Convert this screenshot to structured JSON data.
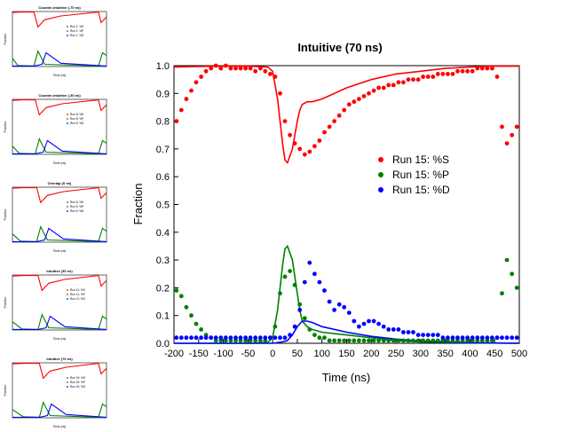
{
  "chart_data": [
    {
      "type": "scatter",
      "title": "Intuitive (70 ns)",
      "xlabel": "Time (ns)",
      "ylabel": "Fraction",
      "xlim": [
        -200,
        500
      ],
      "ylim": [
        0,
        1.0
      ],
      "xticks": [
        "-200",
        "-150",
        "-100",
        "-50",
        "0",
        "50",
        "100",
        "150",
        "200",
        "250",
        "300",
        "350",
        "400",
        "450",
        "500"
      ],
      "yticks": [
        "0.0",
        "0.1",
        "0.2",
        "0.3",
        "0.4",
        "0.5",
        "0.6",
        "0.7",
        "0.8",
        "0.9",
        "1.0"
      ],
      "legend_position": "right-middle",
      "grid": false,
      "series": [
        {
          "name": "Run 15: %S",
          "color": "#ff0000",
          "x": [
            -195,
            -185,
            -175,
            -165,
            -155,
            -145,
            -135,
            -125,
            -115,
            -105,
            -95,
            -85,
            -75,
            -65,
            -55,
            -45,
            -35,
            -25,
            -15,
            -5,
            5,
            15,
            25,
            35,
            45,
            55,
            65,
            75,
            85,
            95,
            105,
            115,
            125,
            135,
            145,
            155,
            165,
            175,
            185,
            195,
            205,
            215,
            225,
            235,
            245,
            255,
            265,
            275,
            285,
            295,
            305,
            315,
            325,
            335,
            345,
            355,
            365,
            375,
            385,
            395,
            405,
            415,
            425,
            435,
            445,
            455,
            465,
            475,
            485,
            495
          ],
          "y": [
            0.8,
            0.84,
            0.88,
            0.91,
            0.94,
            0.96,
            0.98,
            0.99,
            1.0,
            0.99,
            1.0,
            0.99,
            0.99,
            0.99,
            0.99,
            0.99,
            0.98,
            0.99,
            0.98,
            0.97,
            0.96,
            0.9,
            0.8,
            0.75,
            0.72,
            0.7,
            0.68,
            0.69,
            0.71,
            0.73,
            0.76,
            0.78,
            0.8,
            0.82,
            0.84,
            0.86,
            0.87,
            0.88,
            0.89,
            0.9,
            0.91,
            0.92,
            0.92,
            0.93,
            0.93,
            0.94,
            0.94,
            0.95,
            0.95,
            0.95,
            0.96,
            0.96,
            0.96,
            0.97,
            0.97,
            0.97,
            0.97,
            0.98,
            0.98,
            0.98,
            0.98,
            0.99,
            0.99,
            0.99,
            0.99,
            0.96,
            0.78,
            0.72,
            0.75,
            0.78
          ]
        },
        {
          "name": "Run 15: %P",
          "color": "#008000",
          "x": [
            -195,
            -185,
            -175,
            -165,
            -155,
            -145,
            -135,
            -125,
            -115,
            -105,
            -95,
            -85,
            -75,
            -65,
            -55,
            -45,
            -35,
            -25,
            -15,
            -5,
            5,
            15,
            25,
            35,
            45,
            55,
            65,
            75,
            85,
            95,
            105,
            115,
            125,
            135,
            145,
            155,
            165,
            175,
            185,
            195,
            205,
            215,
            225,
            235,
            245,
            255,
            265,
            275,
            285,
            295,
            305,
            315,
            325,
            335,
            345,
            355,
            365,
            375,
            385,
            395,
            405,
            415,
            425,
            435,
            445,
            455,
            465,
            475,
            485,
            495
          ],
          "y": [
            0.19,
            0.17,
            0.13,
            0.1,
            0.07,
            0.05,
            0.03,
            0.02,
            0.01,
            0.01,
            0.01,
            0.01,
            0.01,
            0.01,
            0.01,
            0.01,
            0.01,
            0.01,
            0.01,
            0.02,
            0.06,
            0.18,
            0.24,
            0.26,
            0.21,
            0.14,
            0.09,
            0.05,
            0.03,
            0.02,
            0.02,
            0.01,
            0.01,
            0.01,
            0.01,
            0.01,
            0.01,
            0.01,
            0.01,
            0.01,
            0.01,
            0.01,
            0.01,
            0.01,
            0.01,
            0.01,
            0.01,
            0.01,
            0.01,
            0.01,
            0.01,
            0.01,
            0.01,
            0.01,
            0.01,
            0.01,
            0.01,
            0.01,
            0.01,
            0.01,
            0.01,
            0.01,
            0.01,
            0.01,
            0.01,
            0.02,
            0.18,
            0.3,
            0.25,
            0.2
          ]
        },
        {
          "name": "Run 15: %D",
          "color": "#0000ff",
          "x": [
            -195,
            -185,
            -175,
            -165,
            -155,
            -145,
            -135,
            -125,
            -115,
            -105,
            -95,
            -85,
            -75,
            -65,
            -55,
            -45,
            -35,
            -25,
            -15,
            -5,
            5,
            15,
            25,
            35,
            45,
            55,
            65,
            75,
            85,
            95,
            105,
            115,
            125,
            135,
            145,
            155,
            165,
            175,
            185,
            195,
            205,
            215,
            225,
            235,
            245,
            255,
            265,
            275,
            285,
            295,
            305,
            315,
            325,
            335,
            345,
            355,
            365,
            375,
            385,
            395,
            405,
            415,
            425,
            435,
            445,
            455,
            465,
            475,
            485,
            495
          ],
          "y": [
            0.02,
            0.02,
            0.02,
            0.02,
            0.02,
            0.02,
            0.02,
            0.02,
            0.02,
            0.02,
            0.02,
            0.02,
            0.02,
            0.02,
            0.02,
            0.02,
            0.02,
            0.02,
            0.02,
            0.02,
            0.02,
            0.02,
            0.02,
            0.03,
            0.06,
            0.12,
            0.22,
            0.29,
            0.25,
            0.22,
            0.19,
            0.15,
            0.12,
            0.14,
            0.13,
            0.11,
            0.08,
            0.06,
            0.07,
            0.08,
            0.08,
            0.07,
            0.06,
            0.05,
            0.05,
            0.05,
            0.04,
            0.04,
            0.04,
            0.03,
            0.03,
            0.03,
            0.03,
            0.03,
            0.02,
            0.02,
            0.02,
            0.02,
            0.02,
            0.02,
            0.02,
            0.02,
            0.02,
            0.02,
            0.02,
            0.02,
            0.02,
            0.02,
            0.02,
            0.02
          ]
        }
      ],
      "fit_curves": [
        {
          "color": "#ff0000",
          "x": [
            -200,
            -150,
            -100,
            -50,
            -10,
            0,
            10,
            20,
            25,
            30,
            40,
            50,
            55,
            60,
            70,
            80,
            100,
            150,
            200,
            250,
            300,
            350,
            400,
            440,
            450,
            460,
            500
          ],
          "y": [
            0.995,
            0.997,
            0.998,
            0.998,
            0.995,
            0.98,
            0.88,
            0.72,
            0.66,
            0.65,
            0.7,
            0.8,
            0.84,
            0.86,
            0.87,
            0.87,
            0.88,
            0.92,
            0.95,
            0.97,
            0.98,
            0.99,
            0.995,
            0.998,
            0.998,
            0.998,
            0.998
          ]
        },
        {
          "color": "#008000",
          "x": [
            -200,
            -50,
            -10,
            0,
            10,
            20,
            25,
            30,
            40,
            50,
            55,
            60,
            70,
            80,
            100,
            150,
            200,
            250,
            300,
            350,
            400,
            450,
            500
          ],
          "y": [
            0.0,
            0.0,
            0.003,
            0.02,
            0.12,
            0.28,
            0.34,
            0.35,
            0.3,
            0.18,
            0.12,
            0.08,
            0.06,
            0.05,
            0.04,
            0.03,
            0.02,
            0.01,
            0.005,
            0.003,
            0.002,
            0.001,
            0.0
          ]
        },
        {
          "color": "#0000ff",
          "x": [
            -200,
            0,
            20,
            30,
            40,
            50,
            60,
            70,
            80,
            100,
            150,
            200,
            250,
            300,
            350,
            400,
            450,
            500
          ],
          "y": [
            0.0,
            0.0,
            0.005,
            0.01,
            0.03,
            0.06,
            0.08,
            0.08,
            0.075,
            0.06,
            0.04,
            0.025,
            0.015,
            0.008,
            0.004,
            0.002,
            0.001,
            0.0
          ]
        }
      ]
    }
  ],
  "thumbnails": [
    {
      "title": "Counter-intuitive (-70 ns)",
      "legend": [
        "Run 1: %S",
        "Run 1: %P",
        "Run 1: %D"
      ]
    },
    {
      "title": "Counter-intuitive (-30 ns)",
      "legend": [
        "Run 8: %S",
        "Run 8: %P",
        "Run 8: %D"
      ]
    },
    {
      "title": "Overlap (0 ns)",
      "legend": [
        "Run 6: %S",
        "Run 6: %P",
        "Run 6: %D"
      ]
    },
    {
      "title": "Intuitive (30 ns)",
      "legend": [
        "Run 11: %S",
        "Run 11: %P",
        "Run 11: %D"
      ]
    },
    {
      "title": "Intuitive (70 ns)",
      "legend": [
        "Run 15: %S",
        "Run 15: %P",
        "Run 15: %D"
      ]
    }
  ],
  "thumb_labels": {
    "xlabel": "Time (ns)",
    "ylabel": "Fraction"
  }
}
